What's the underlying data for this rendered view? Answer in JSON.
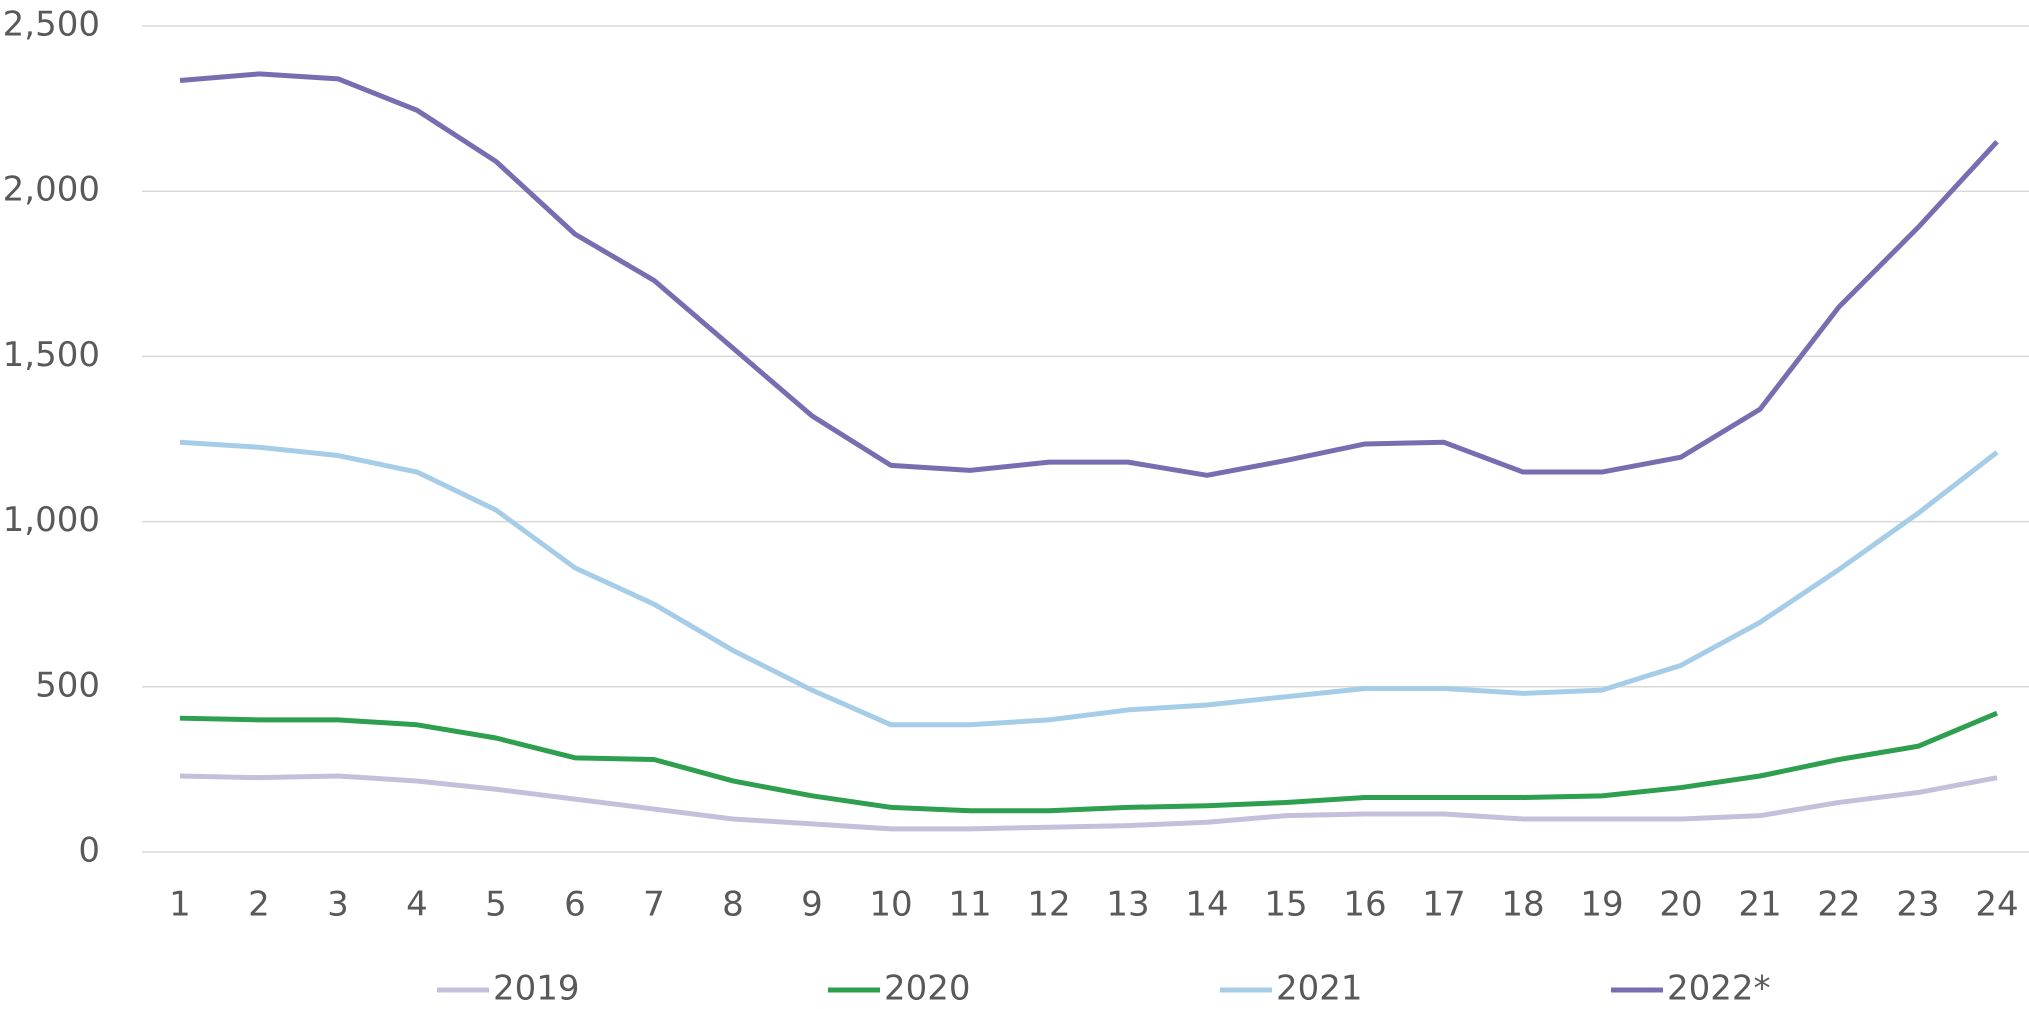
{
  "chart_data": {
    "type": "line",
    "categories": [
      "1",
      "2",
      "3",
      "4",
      "5",
      "6",
      "7",
      "8",
      "9",
      "10",
      "11",
      "12",
      "13",
      "14",
      "15",
      "16",
      "17",
      "18",
      "19",
      "20",
      "21",
      "22",
      "23",
      "24"
    ],
    "series": [
      {
        "name": "2019",
        "color": "#c5bfdc",
        "values": [
          230,
          225,
          230,
          215,
          190,
          160,
          130,
          100,
          85,
          70,
          70,
          75,
          80,
          90,
          110,
          115,
          115,
          100,
          100,
          100,
          110,
          150,
          180,
          225
        ]
      },
      {
        "name": "2020",
        "color": "#2e9e4f",
        "values": [
          405,
          400,
          400,
          385,
          345,
          285,
          280,
          215,
          170,
          135,
          125,
          125,
          135,
          140,
          150,
          165,
          165,
          165,
          170,
          195,
          230,
          280,
          320,
          420
        ]
      },
      {
        "name": "2021",
        "color": "#a6cde8",
        "values": [
          1240,
          1225,
          1200,
          1150,
          1035,
          860,
          750,
          610,
          490,
          385,
          385,
          400,
          430,
          445,
          470,
          495,
          495,
          480,
          490,
          565,
          695,
          855,
          1025,
          1210
        ]
      },
      {
        "name": "2022*",
        "color": "#7a6cb0",
        "values": [
          2335,
          2355,
          2340,
          2245,
          2090,
          1870,
          1730,
          1525,
          1320,
          1170,
          1155,
          1180,
          1180,
          1140,
          1185,
          1235,
          1240,
          1150,
          1150,
          1195,
          1340,
          1650,
          1890,
          2150
        ]
      }
    ],
    "ylim": [
      0,
      2500
    ],
    "yticks": [
      0,
      500,
      {
        "value": 1000,
        "label": "1,000"
      },
      {
        "value": 1500,
        "label": "1,500"
      },
      {
        "value": 2000,
        "label": "2,000"
      },
      {
        "value": 2500,
        "label": "2,500"
      }
    ],
    "grid": true,
    "legend": "bottom"
  }
}
